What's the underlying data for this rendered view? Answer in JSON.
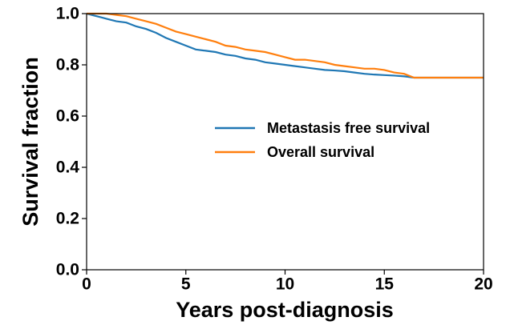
{
  "chart_data": {
    "type": "line",
    "xlabel": "Years post-diagnosis",
    "ylabel": "Survival fraction",
    "x": [
      0,
      0.5,
      1,
      1.5,
      2,
      2.5,
      3,
      3.5,
      4,
      4.5,
      5,
      5.5,
      6,
      6.5,
      7,
      7.5,
      8,
      8.5,
      9,
      9.5,
      10,
      10.5,
      11,
      11.5,
      12,
      12.5,
      13,
      13.5,
      14,
      14.5,
      15,
      15.5,
      16,
      16.5,
      20
    ],
    "series": [
      {
        "name": "Metastasis free survival",
        "color": "#1f77b4",
        "values": [
          1.0,
          0.99,
          0.98,
          0.97,
          0.965,
          0.95,
          0.94,
          0.925,
          0.905,
          0.89,
          0.875,
          0.86,
          0.855,
          0.85,
          0.84,
          0.835,
          0.825,
          0.82,
          0.81,
          0.805,
          0.8,
          0.795,
          0.79,
          0.785,
          0.78,
          0.778,
          0.775,
          0.77,
          0.765,
          0.762,
          0.76,
          0.758,
          0.755,
          0.75,
          0.75
        ]
      },
      {
        "name": "Overall survival",
        "color": "#ff7f0e",
        "values": [
          1.0,
          1.0,
          1.0,
          0.995,
          0.99,
          0.98,
          0.97,
          0.96,
          0.945,
          0.93,
          0.92,
          0.91,
          0.9,
          0.89,
          0.875,
          0.87,
          0.86,
          0.855,
          0.85,
          0.84,
          0.83,
          0.82,
          0.82,
          0.815,
          0.81,
          0.8,
          0.795,
          0.79,
          0.785,
          0.785,
          0.78,
          0.77,
          0.765,
          0.75,
          0.75
        ]
      }
    ],
    "xlim": [
      0,
      20
    ],
    "xticks": [
      0,
      5,
      10,
      15,
      20
    ],
    "ylim": [
      0,
      1
    ],
    "yticks": [
      {
        "value": 0,
        "label": "0.0"
      },
      0.2,
      0.4,
      0.6,
      0.8,
      {
        "value": 1,
        "label": "1.0"
      }
    ],
    "grid": false,
    "legend": "center right"
  }
}
